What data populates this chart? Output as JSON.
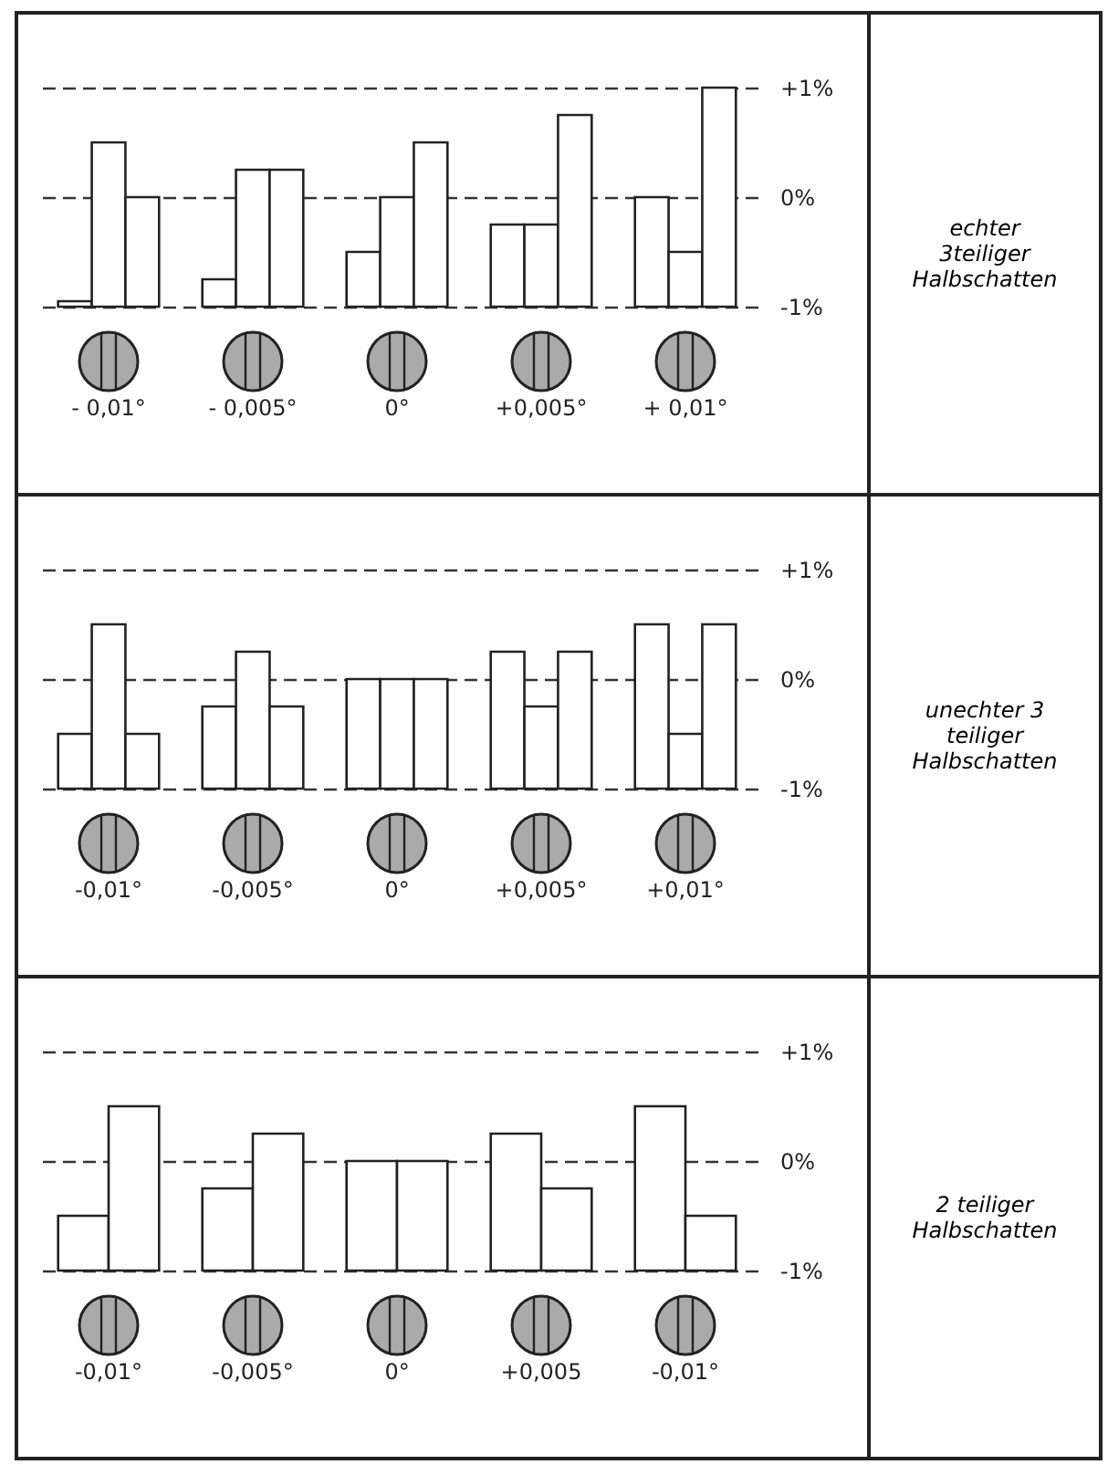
{
  "chart_data": [
    {
      "type": "bar",
      "categories": [
        "- 0,01°",
        "- 0,005°",
        "0°",
        "+0,005°",
        "+ 0,01°"
      ],
      "series": [
        {
          "color": "#ffffff",
          "base": [
            -1,
            -1,
            -1,
            -1,
            -1
          ],
          "values": [
            0.05,
            0.25,
            0.5,
            0.75,
            1
          ]
        },
        {
          "color": "#ffffff",
          "base": [
            -1,
            -1,
            -1,
            -1,
            -1
          ],
          "values": [
            1.5,
            1.25,
            1,
            0.75,
            0.5
          ]
        },
        {
          "color": "#ffffff",
          "base": [
            -1,
            -1,
            -1,
            -1,
            -1
          ],
          "values": [
            1,
            1.25,
            1.5,
            1.75,
            2
          ]
        }
      ],
      "ylim": [
        -1,
        1
      ],
      "yticks": [
        {
          "value": -1,
          "label": "-1%"
        },
        {
          "value": 0,
          "label": "0%"
        },
        {
          "value": 1,
          "label": "+1%"
        }
      ],
      "grid": "y",
      "annotations": [
        "echter 3teiliger Halbschatten"
      ]
    },
    {
      "type": "bar",
      "categories": [
        "-0,01°",
        "-0,005°",
        "0°",
        "+0,005°",
        "+0,01°"
      ],
      "series": [
        {
          "color": "#ffffff",
          "base": [
            -1,
            -1,
            -1,
            -1,
            -1
          ],
          "values": [
            0.5,
            0.75,
            1,
            1.25,
            1.5
          ]
        },
        {
          "color": "#ffffff",
          "base": [
            -1,
            -1,
            -1,
            -1,
            -1
          ],
          "values": [
            1.5,
            1.25,
            1,
            0.75,
            0.5
          ]
        },
        {
          "color": "#ffffff",
          "base": [
            -1,
            -1,
            -1,
            -1,
            -1
          ],
          "values": [
            0.5,
            0.75,
            1,
            1.25,
            1.5
          ]
        }
      ],
      "ylim": [
        -1,
        1
      ],
      "yticks": [
        {
          "value": -1,
          "label": "-1%"
        },
        {
          "value": 0,
          "label": "0%"
        },
        {
          "value": 1,
          "label": "+1%"
        }
      ],
      "grid": "y",
      "annotations": [
        "unechter 3 teiliger Halbschatten"
      ]
    },
    {
      "type": "bar",
      "categories": [
        "-0,01°",
        "-0,005°",
        "0°",
        "+0,005",
        "-0,01°"
      ],
      "series": [
        {
          "color": "#ffffff",
          "base": [
            -1,
            -1,
            -1,
            -1,
            -1
          ],
          "values": [
            0.5,
            0.75,
            1,
            1.25,
            1.5
          ]
        },
        {
          "color": "#ffffff",
          "base": [
            -1,
            -1,
            -1,
            -1,
            -1
          ],
          "values": [
            1.5,
            1.25,
            1,
            0.75,
            0.5
          ]
        }
      ],
      "ylim": [
        -1,
        1
      ],
      "yticks": [
        {
          "value": -1,
          "label": "-1%"
        },
        {
          "value": 0,
          "label": "0%"
        },
        {
          "value": 1,
          "label": "+1%"
        }
      ],
      "grid": "y",
      "annotations": [
        "2 teiliger Halbschatten"
      ]
    }
  ]
}
